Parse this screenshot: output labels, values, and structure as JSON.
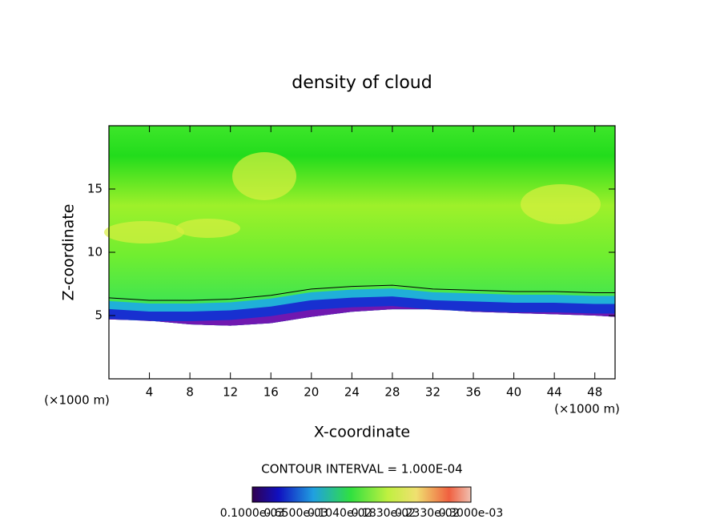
{
  "chart_data": {
    "type": "contour",
    "title": "density of cloud",
    "xlabel": "X-coordinate",
    "ylabel": "Z-coordinate",
    "xunit": "(×1000 m)",
    "yunit": "(×1000 m)",
    "xlim": [
      0,
      50
    ],
    "ylim": [
      0,
      20
    ],
    "xticks": [
      4,
      8,
      12,
      16,
      20,
      24,
      28,
      32,
      36,
      40,
      44,
      48
    ],
    "yticks": [
      5,
      10,
      15
    ],
    "x": [
      0,
      4,
      8,
      12,
      16,
      20,
      24,
      28,
      32,
      36,
      40,
      44,
      48,
      50
    ],
    "cloud_base": [
      4.7,
      4.6,
      4.3,
      4.2,
      4.4,
      4.9,
      5.3,
      5.5,
      5.5,
      5.3,
      5.2,
      5.1,
      5.0,
      4.9
    ],
    "contour_line": [
      6.4,
      6.2,
      6.2,
      6.3,
      6.6,
      7.1,
      7.3,
      7.4,
      7.1,
      7.0,
      6.9,
      6.9,
      6.8,
      6.8
    ],
    "contour_interval": "CONTOUR INTERVAL = 1.000E-04",
    "colorbar_labels": [
      "0.1000e-03",
      "0.6500e-03",
      "0.1040e-02",
      "0.1830e-02",
      "0.2330e-02",
      "0.3000e-03"
    ]
  }
}
